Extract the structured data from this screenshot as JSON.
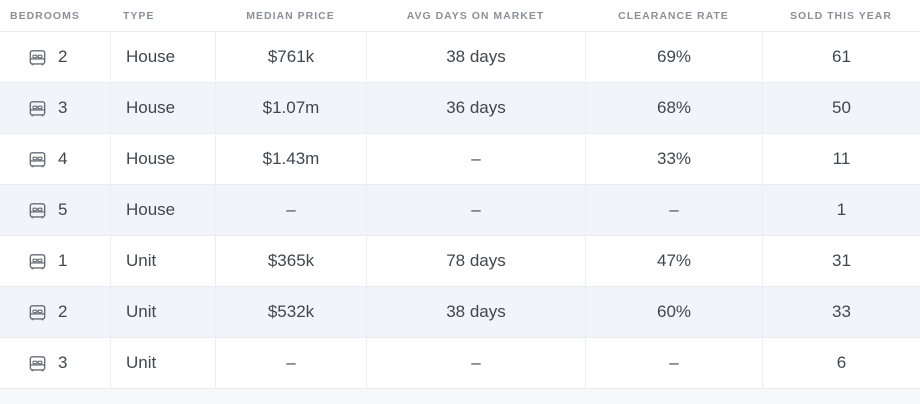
{
  "table": {
    "name": "property-market-stats-table",
    "columns": [
      {
        "key": "bedrooms",
        "label": "BEDROOMS",
        "align": "left",
        "icon": "bed-icon"
      },
      {
        "key": "type",
        "label": "TYPE",
        "align": "left"
      },
      {
        "key": "median_price",
        "label": "MEDIAN PRICE",
        "align": "center"
      },
      {
        "key": "avg_days",
        "label": "AVG DAYS ON MARKET",
        "align": "center"
      },
      {
        "key": "clearance",
        "label": "CLEARANCE RATE",
        "align": "center"
      },
      {
        "key": "sold",
        "label": "SOLD THIS YEAR",
        "align": "center"
      }
    ],
    "rows": [
      {
        "bedrooms": "2",
        "type": "House",
        "median_price": "$761k",
        "avg_days": "38 days",
        "clearance": "69%",
        "sold": "61"
      },
      {
        "bedrooms": "3",
        "type": "House",
        "median_price": "$1.07m",
        "avg_days": "36 days",
        "clearance": "68%",
        "sold": "50"
      },
      {
        "bedrooms": "4",
        "type": "House",
        "median_price": "$1.43m",
        "avg_days": "–",
        "clearance": "33%",
        "sold": "11"
      },
      {
        "bedrooms": "5",
        "type": "House",
        "median_price": "–",
        "avg_days": "–",
        "clearance": "–",
        "sold": "1"
      },
      {
        "bedrooms": "1",
        "type": "Unit",
        "median_price": "$365k",
        "avg_days": "78 days",
        "clearance": "47%",
        "sold": "31"
      },
      {
        "bedrooms": "2",
        "type": "Unit",
        "median_price": "$532k",
        "avg_days": "38 days",
        "clearance": "60%",
        "sold": "33"
      },
      {
        "bedrooms": "3",
        "type": "Unit",
        "median_price": "–",
        "avg_days": "–",
        "clearance": "–",
        "sold": "6"
      }
    ],
    "empty_value": "–"
  },
  "colors": {
    "page_background": "#f7f8f9",
    "row_background": "#ffffff",
    "row_background_striped": "#f3f4f9",
    "border": "#e9ebf0",
    "header_text": "#8a9099",
    "body_text": "#3f4750",
    "icon": "#666d78"
  }
}
